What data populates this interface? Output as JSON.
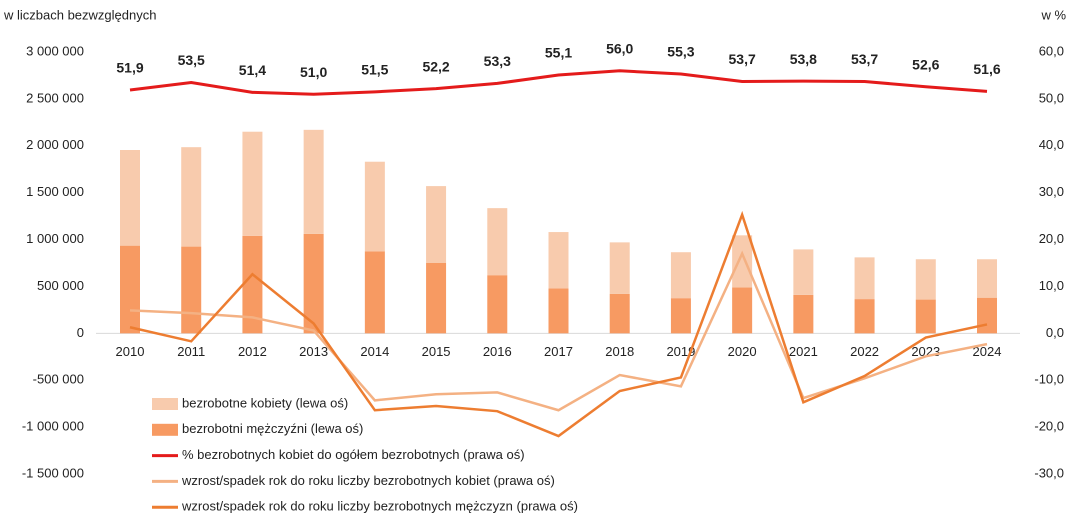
{
  "chart_data": {
    "type": "combo",
    "y_axis_label": "w liczbach bezwzględnych",
    "y2_axis_label": "w %",
    "categories": [
      "2010",
      "2011",
      "2012",
      "2013",
      "2014",
      "2015",
      "2016",
      "2017",
      "2018",
      "2019",
      "2020",
      "2021",
      "2022",
      "2023",
      "2024"
    ],
    "series": [
      {
        "name": "bezrobotne kobiety (lewa oś)",
        "type": "bar",
        "color": "#f8cbad",
        "values": [
          1020000,
          1060000,
          1110000,
          1110000,
          955000,
          820000,
          715000,
          600000,
          550000,
          490000,
          555000,
          485000,
          445000,
          430000,
          410000
        ]
      },
      {
        "name": "bezrobotni mężczyźni (lewa oś)",
        "type": "bar",
        "color": "#f79a62",
        "values": [
          935000,
          925000,
          1040000,
          1060000,
          875000,
          750000,
          620000,
          480000,
          420000,
          375000,
          490000,
          410000,
          365000,
          360000,
          380000
        ]
      },
      {
        "name": "% bezrobotnych kobiet do ogółem bezrobotnych (prawa oś)",
        "type": "line",
        "axis": "y2",
        "color": "#e41b1b",
        "values": [
          51.9,
          53.5,
          51.4,
          51.0,
          51.5,
          52.2,
          53.3,
          55.1,
          56.0,
          55.3,
          53.7,
          53.8,
          53.7,
          52.6,
          51.6
        ],
        "value_labels": [
          "51,9",
          "53,5",
          "51,4",
          "51,0",
          "51,5",
          "52,2",
          "53,3",
          "55,1",
          "56,0",
          "55,3",
          "53,7",
          "53,8",
          "53,7",
          "52,6",
          "51,6"
        ]
      },
      {
        "name": "wzrost/spadek rok do roku liczby bezrobotnych kobiet (prawa oś)",
        "type": "line",
        "axis": "y2",
        "color": "#f4b183",
        "values": [
          4.9,
          4.3,
          3.4,
          0.6,
          -14.3,
          -13.0,
          -12.6,
          -16.4,
          -8.9,
          -11.3,
          17.0,
          -13.8,
          -9.6,
          -4.9,
          -2.3
        ]
      },
      {
        "name": "wzrost/spadek rok do roku liczby bezrobotnych mężczyzn (prawa oś)",
        "type": "line",
        "axis": "y2",
        "color": "#ed7d31",
        "values": [
          1.3,
          -1.7,
          12.6,
          2.1,
          -16.4,
          -15.5,
          -16.6,
          -21.9,
          -12.3,
          -9.4,
          25.3,
          -14.7,
          -9.1,
          -0.9,
          1.9
        ]
      }
    ],
    "ylim": [
      -1500000,
      3000000
    ],
    "yticks": [
      {
        "value": -1500000,
        "label": "-1 500 000"
      },
      {
        "value": -1000000,
        "label": "-1 000 000"
      },
      {
        "value": -500000,
        "label": "-500 000"
      },
      0,
      {
        "value": 500000,
        "label": "500 000"
      },
      {
        "value": 1000000,
        "label": "1 000 000"
      },
      {
        "value": 1500000,
        "label": "1 500 000"
      },
      {
        "value": 2000000,
        "label": "2 000 000"
      },
      {
        "value": 2500000,
        "label": "2 500 000"
      },
      {
        "value": 3000000,
        "label": "3 000 000"
      }
    ],
    "y2lim": [
      -30,
      60
    ],
    "y2ticks": [
      {
        "value": -30,
        "label": "-30,0"
      },
      {
        "value": -20,
        "label": "-20,0"
      },
      {
        "value": -10,
        "label": "-10,0"
      },
      {
        "value": 0,
        "label": "0,0"
      },
      {
        "value": 10,
        "label": "10,0"
      },
      {
        "value": 20,
        "label": "20,0"
      },
      {
        "value": 30,
        "label": "30,0"
      },
      {
        "value": 40,
        "label": "40,0"
      },
      {
        "value": 50,
        "label": "50,0"
      },
      {
        "value": 60,
        "label": "60,0"
      }
    ],
    "legend": "bottom-left"
  }
}
